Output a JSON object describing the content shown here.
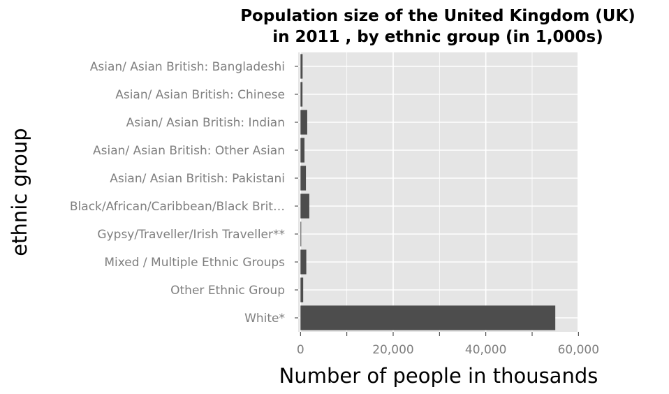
{
  "chart_data": {
    "type": "bar",
    "orientation": "horizontal",
    "title": "Population size of the United Kingdom (UK) in 2011 , by ethnic group (in 1,000s)",
    "title_lines": [
      "Population size of the United Kingdom (UK)",
      "in 2011 , by ethnic group (in 1,000s)"
    ],
    "xlabel": "Number of people in thousands",
    "ylabel": "ethnic group",
    "xlim": [
      0,
      60000
    ],
    "x_ticks": [
      0,
      20000,
      40000,
      60000
    ],
    "x_tick_labels": [
      "0",
      "20,000",
      "40,000",
      "60,000"
    ],
    "categories": [
      "Asian/ Asian British: Bangladeshi",
      "Asian/ Asian British: Chinese",
      "Asian/ Asian British: Indian",
      "Asian/ Asian British: Other Asian",
      "Asian/ Asian British: Pakistani",
      "Black/African/Caribbean/Black Brit…",
      "Gypsy/Traveller/Irish Traveller**",
      "Mixed / Multiple Ethnic Groups",
      "Other Ethnic Group",
      "White*"
    ],
    "values": [
      450,
      430,
      1450,
      860,
      1170,
      1900,
      60,
      1250,
      580,
      55000
    ],
    "grid": true,
    "legend": "none",
    "colors": {
      "bar": "#4d4d4d",
      "panel": "#e5e5e5",
      "grid": "#ffffff",
      "tick_text": "#7f7f7f"
    }
  }
}
